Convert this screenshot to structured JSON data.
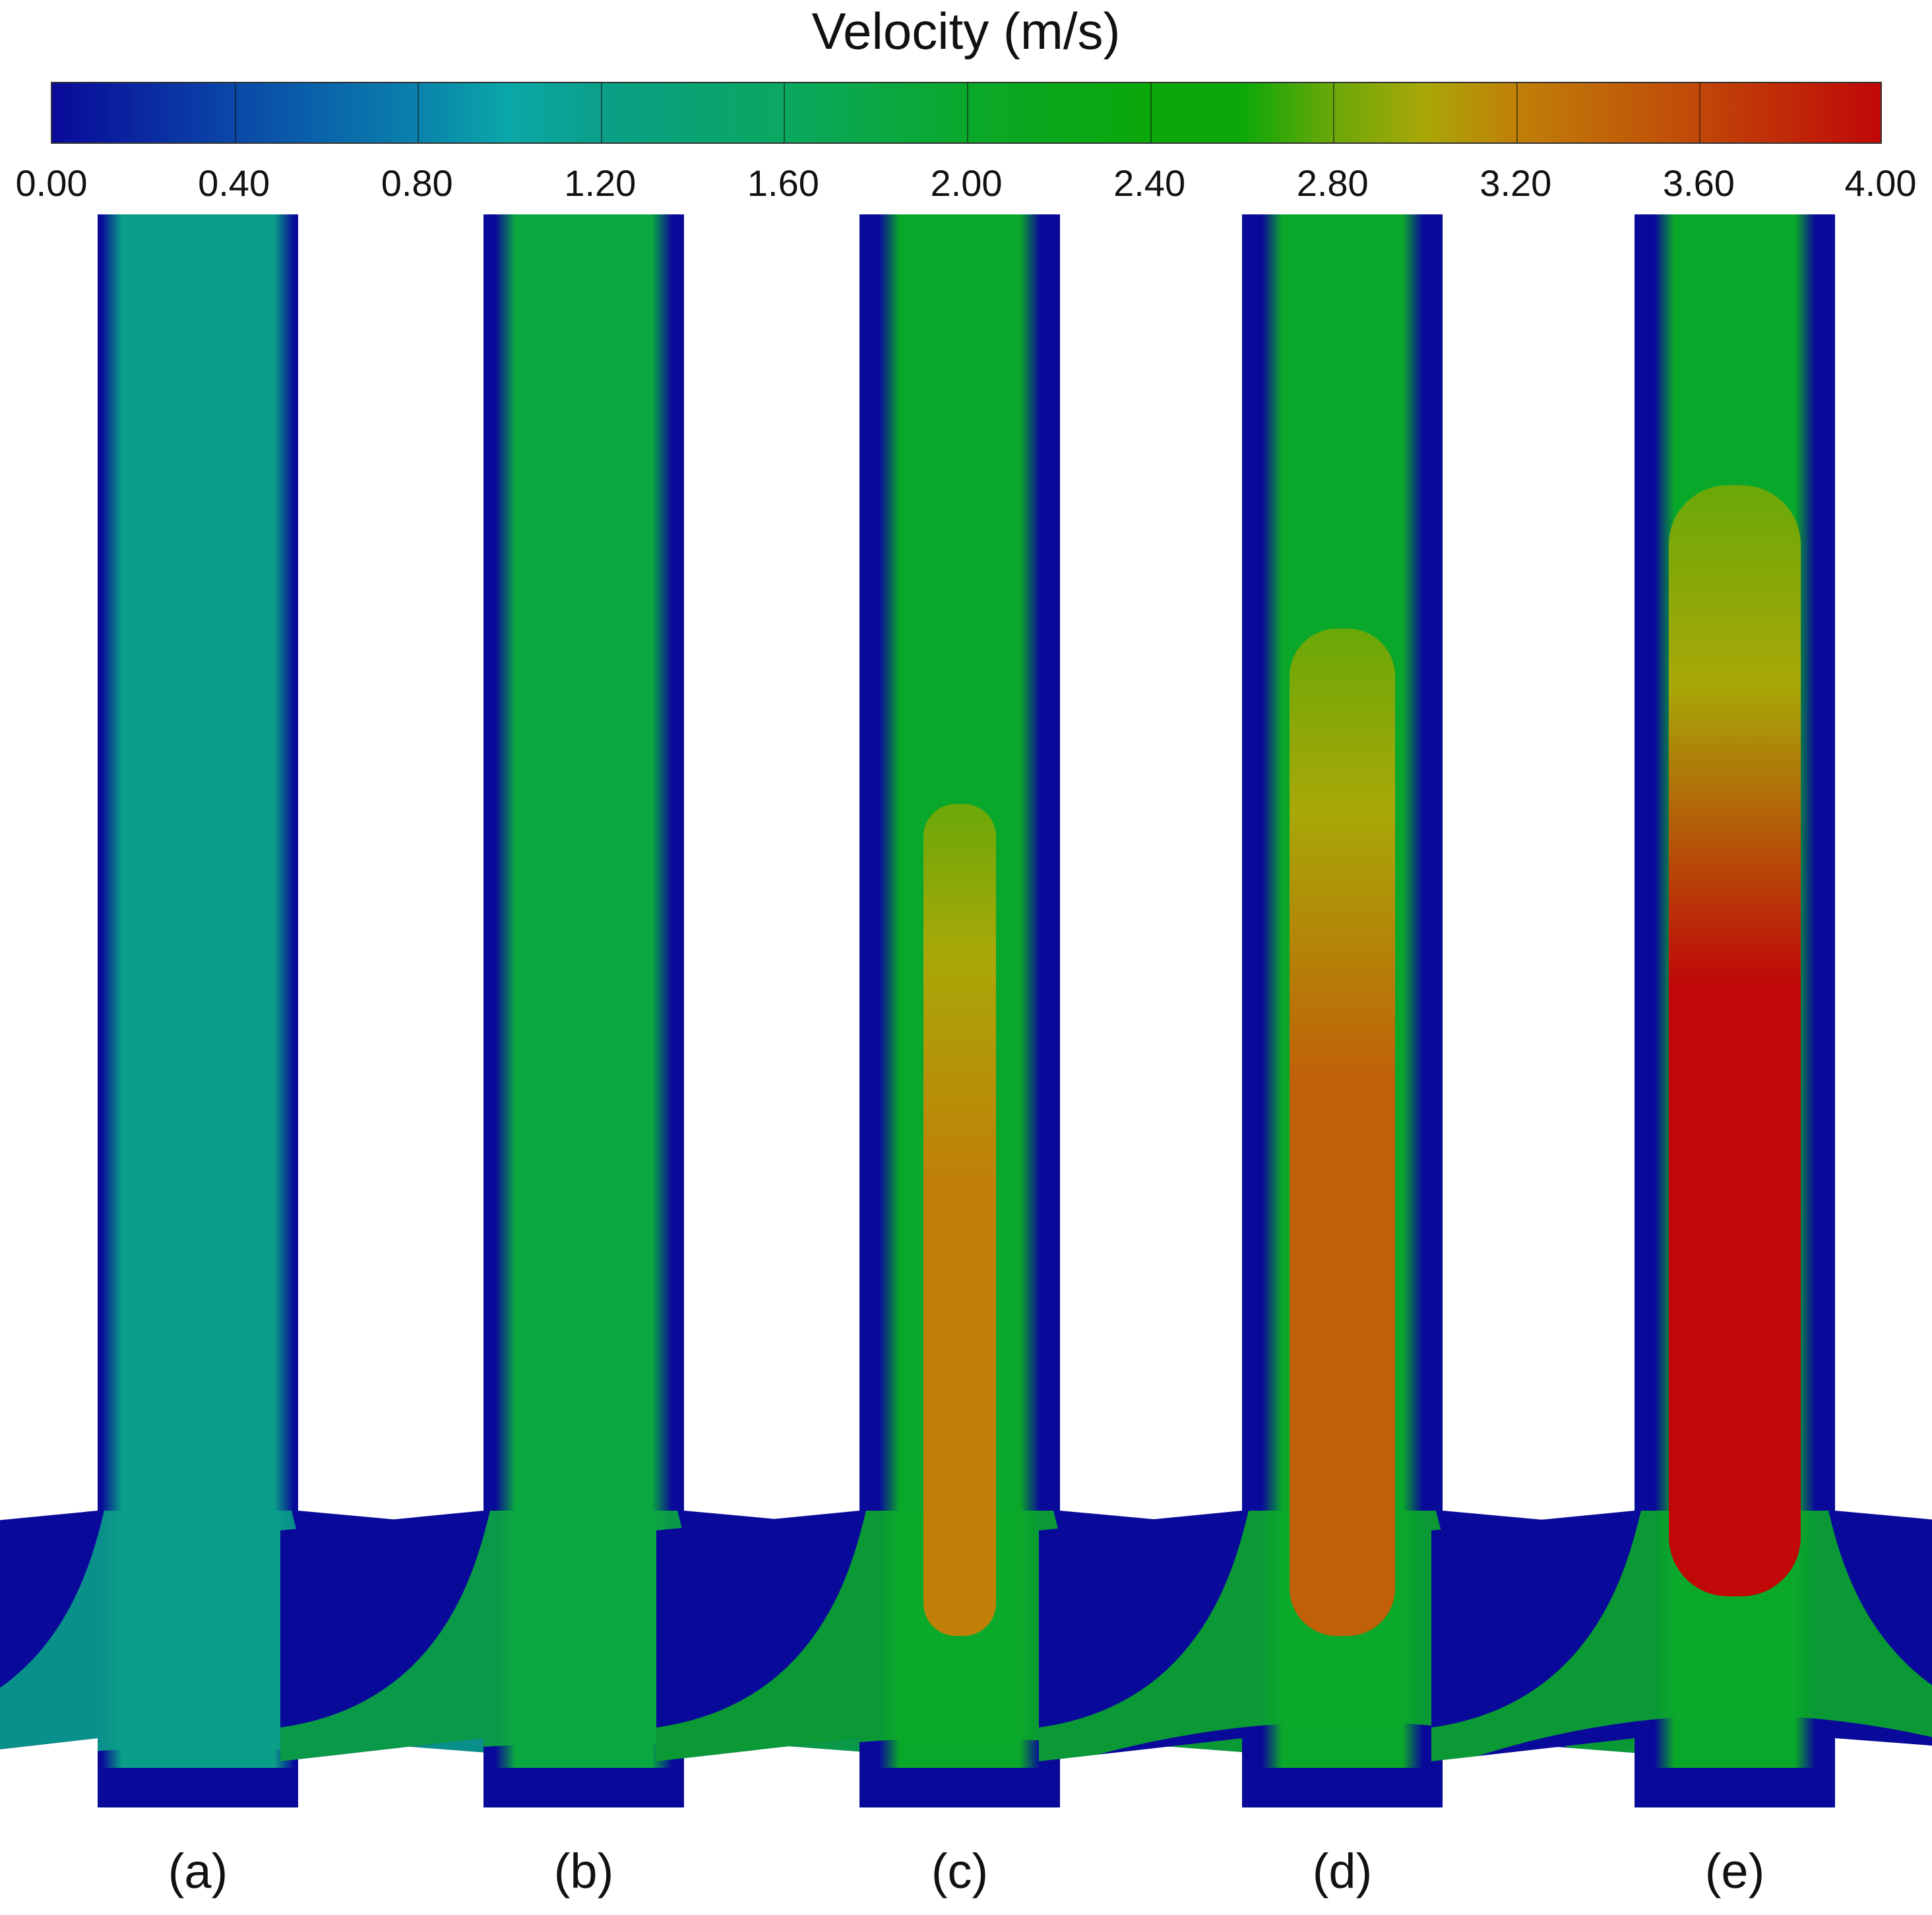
{
  "colorbar": {
    "title": "Velocity (m/s)",
    "min": 0.0,
    "max": 4.0,
    "ticks": [
      "0.00",
      "0.40",
      "0.80",
      "1.20",
      "1.60",
      "2.00",
      "2.40",
      "2.80",
      "3.20",
      "3.60",
      "4.00"
    ],
    "stops": [
      {
        "value": 0.0,
        "color": "#0a0a9a"
      },
      {
        "value": 0.4,
        "color": "#0a48a8"
      },
      {
        "value": 0.8,
        "color": "#0a82ac"
      },
      {
        "value": 1.0,
        "color": "#0aa8a8"
      },
      {
        "value": 1.2,
        "color": "#0a9f88"
      },
      {
        "value": 1.6,
        "color": "#0aa860"
      },
      {
        "value": 2.0,
        "color": "#0aa82a"
      },
      {
        "value": 2.4,
        "color": "#0aa80a"
      },
      {
        "value": 2.6,
        "color": "#0aa808"
      },
      {
        "value": 2.8,
        "color": "#6aa808"
      },
      {
        "value": 3.0,
        "color": "#a8a808"
      },
      {
        "value": 3.2,
        "color": "#c08008"
      },
      {
        "value": 3.6,
        "color": "#c04808"
      },
      {
        "value": 4.0,
        "color": "#c00808"
      }
    ]
  },
  "panels": [
    {
      "label": "(a)",
      "wall_color": "#0a0a9a",
      "core_color": "#0a9f88",
      "jet_color": null,
      "jet_top": null,
      "bottom_hump": 0.05
    },
    {
      "label": "(b)",
      "wall_color": "#0a0a9a",
      "core_color": "#0aa840",
      "jet_color": null,
      "jet_top": null,
      "bottom_hump": 0.12
    },
    {
      "label": "(c)",
      "wall_color": "#0a0a9a",
      "core_color": "#0aa82a",
      "jet_color": "#c08008",
      "jet_top": 0.37,
      "bottom_hump": 0.2
    },
    {
      "label": "(d)",
      "wall_color": "#0a0a9a",
      "core_color": "#0aa82a",
      "jet_color": "#c06008",
      "jet_top": 0.26,
      "bottom_hump": 0.45
    },
    {
      "label": "(e)",
      "wall_color": "#0a0a9a",
      "core_color": "#0aa82a",
      "jet_color": "#c00808",
      "jet_top": 0.17,
      "bottom_hump": 0.55
    }
  ]
}
